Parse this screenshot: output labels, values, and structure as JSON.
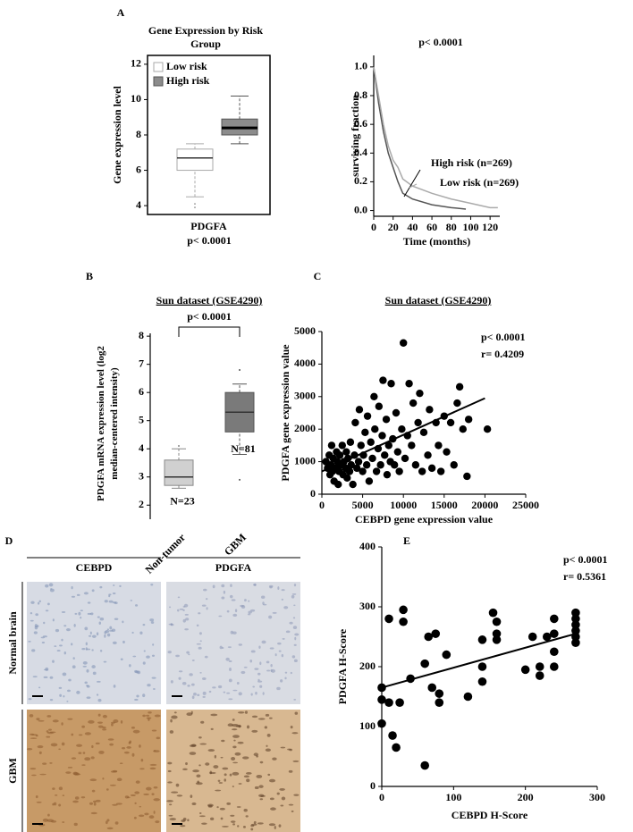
{
  "panels": [
    "A",
    "B",
    "C",
    "D",
    "E"
  ],
  "chart_data": [
    {
      "type": "box",
      "title": "Gene Expression by Risk Group",
      "y_label": "Gene expression level",
      "x_label": "PDGFA",
      "note": "p< 0.0001",
      "ylim": [
        3.5,
        12.5
      ],
      "yticks": [
        4,
        6,
        8,
        10,
        12
      ],
      "boxes": [
        {
          "name": "Low risk",
          "color": "#ffffff",
          "edge": "#aaaaaa",
          "whisker_low": 4.5,
          "q1": 6.0,
          "median": 6.7,
          "q3": 7.2,
          "whisker_high": 7.5,
          "outliers": [
            4.1,
            3.9
          ]
        },
        {
          "name": "High risk",
          "color": "#8c8c8c",
          "edge": "#555555",
          "whisker_low": 7.5,
          "q1": 8.0,
          "median": 8.4,
          "q3": 8.9,
          "whisker_high": 10.2,
          "outliers": []
        }
      ]
    },
    {
      "type": "line",
      "title": "p< 0.0001",
      "y_label": "surviving fraction",
      "x_label": "Time (months)",
      "xlim": [
        0,
        130
      ],
      "xticks": [
        0,
        20,
        40,
        60,
        80,
        100,
        120
      ],
      "ylim": [
        -0.04,
        1.08
      ],
      "yticks": [
        {
          "value": 0,
          "label": "0.0"
        },
        0.2,
        0.4,
        0.6,
        0.8,
        {
          "value": 1,
          "label": "1.0"
        }
      ],
      "annotations": [
        "High risk (n=269)",
        "Low risk (n=269)"
      ],
      "series": [
        {
          "name": "High risk",
          "color": "#555555",
          "x": [
            0,
            5,
            10,
            15,
            20,
            25,
            30,
            40,
            60,
            80,
            95
          ],
          "values": [
            1,
            0.75,
            0.55,
            0.4,
            0.3,
            0.2,
            0.12,
            0.08,
            0.04,
            0.02,
            0.01
          ]
        },
        {
          "name": "Low risk",
          "color": "#aaaaaa",
          "x": [
            0,
            5,
            10,
            15,
            20,
            25,
            30,
            40,
            60,
            80,
            100,
            120,
            128
          ],
          "values": [
            1,
            0.8,
            0.6,
            0.45,
            0.35,
            0.3,
            0.22,
            0.17,
            0.12,
            0.08,
            0.05,
            0.02,
            0.02
          ]
        }
      ]
    },
    {
      "type": "box",
      "panel": "B",
      "title": "Sun dataset  (GSE4290)",
      "note": "p< 0.0001",
      "y_label": "PDGFA mRNA expression level (log2 median-centered intensity)",
      "ylim": [
        1.5,
        8.1
      ],
      "yticks": [
        2,
        3,
        4,
        5,
        6,
        7,
        8
      ],
      "categories": [
        "Non-tumor",
        "GBM"
      ],
      "boxes": [
        {
          "color": "#d0d0d0",
          "edge": "#888888",
          "whisker_low": 2.6,
          "q1": 2.7,
          "median": 3.0,
          "q3": 3.6,
          "whisker_high": 4.0,
          "outliers": [
            4.1
          ],
          "n_label": "N=23"
        },
        {
          "color": "#7a7a7a",
          "edge": "#555555",
          "whisker_low": 3.8,
          "q1": 4.6,
          "median": 5.3,
          "q3": 6.0,
          "whisker_high": 6.3,
          "outliers": [
            6.8,
            2.9
          ],
          "n_label": "N=81"
        }
      ]
    },
    {
      "type": "scatter",
      "panel": "C",
      "title": "Sun dataset  (GSE4290)",
      "x_label": "CEBPD gene expression value",
      "y_label": "PDGFA gene expression value",
      "annotations": [
        "p< 0.0001",
        "r= 0.4209"
      ],
      "xlim": [
        0,
        25000
      ],
      "xticks": [
        0,
        5000,
        10000,
        15000,
        20000,
        25000
      ],
      "ylim": [
        0,
        5000
      ],
      "yticks": [
        0,
        1000,
        2000,
        3000,
        4000,
        5000
      ],
      "trendline": {
        "x": [
          0,
          20000
        ],
        "y": [
          700,
          2950
        ]
      },
      "x": [
        500,
        700,
        900,
        1000,
        1100,
        1200,
        1300,
        1400,
        1500,
        1600,
        1800,
        1900,
        2000,
        2100,
        2200,
        2300,
        2500,
        2600,
        2700,
        2900,
        3000,
        3100,
        3200,
        3400,
        3500,
        3600,
        3800,
        4000,
        4100,
        4300,
        4500,
        4600,
        4800,
        5000,
        5100,
        5300,
        5500,
        5600,
        5800,
        6000,
        6200,
        6400,
        6500,
        6700,
        6900,
        7000,
        7200,
        7400,
        7500,
        7700,
        7900,
        8000,
        8200,
        8400,
        8500,
        8700,
        8900,
        9100,
        9300,
        9500,
        9800,
        10000,
        10200,
        10500,
        10700,
        11000,
        11200,
        11500,
        11800,
        12000,
        12300,
        12500,
        13000,
        13200,
        13500,
        14000,
        14300,
        14600,
        15000,
        15300,
        15800,
        16200,
        16600,
        16900,
        17300,
        17800,
        18000,
        20300
      ],
      "y": [
        1000,
        800,
        1200,
        600,
        900,
        1500,
        700,
        1100,
        400,
        800,
        1300,
        1000,
        300,
        700,
        1200,
        900,
        1500,
        600,
        1000,
        800,
        1300,
        500,
        1100,
        700,
        1600,
        900,
        300,
        1200,
        2200,
        800,
        1000,
        2600,
        1500,
        700,
        1200,
        1900,
        900,
        2400,
        400,
        1600,
        1100,
        3000,
        2000,
        700,
        1400,
        2700,
        900,
        1800,
        3500,
        1200,
        2300,
        600,
        1500,
        1000,
        3400,
        1700,
        900,
        2500,
        1300,
        700,
        2000,
        4650,
        1100,
        1800,
        3400,
        1500,
        2800,
        900,
        2200,
        3100,
        700,
        1900,
        1200,
        2600,
        800,
        2200,
        1500,
        700,
        2400,
        1300,
        2200,
        900,
        2800,
        3300,
        2000,
        550,
        2300,
        2000
      ]
    },
    {
      "type": "scatter",
      "panel": "E",
      "x_label": "CEBPD H-Score",
      "y_label": "PDGFA H-Score",
      "annotations": [
        "p< 0.0001",
        "r= 0.5361"
      ],
      "xlim": [
        0,
        300
      ],
      "xticks": [
        0,
        100,
        200,
        300
      ],
      "ylim": [
        0,
        400
      ],
      "yticks": [
        0,
        100,
        200,
        300,
        400
      ],
      "trendline": {
        "x": [
          0,
          270
        ],
        "y": [
          165,
          255
        ]
      },
      "x": [
        0,
        0,
        0,
        10,
        10,
        15,
        20,
        25,
        30,
        30,
        40,
        60,
        60,
        65,
        70,
        75,
        80,
        80,
        90,
        120,
        140,
        140,
        140,
        155,
        160,
        160,
        160,
        200,
        210,
        220,
        220,
        230,
        240,
        240,
        240,
        240,
        270,
        270,
        270,
        270,
        270,
        270
      ],
      "y": [
        165,
        105,
        145,
        280,
        140,
        85,
        65,
        140,
        295,
        275,
        180,
        35,
        205,
        250,
        165,
        255,
        140,
        155,
        220,
        150,
        175,
        245,
        200,
        290,
        275,
        255,
        245,
        195,
        250,
        185,
        200,
        250,
        255,
        280,
        200,
        225,
        290,
        280,
        270,
        260,
        250,
        240
      ]
    }
  ],
  "figure_d": {
    "panel": "D",
    "columns": [
      "CEBPD",
      "PDGFA"
    ],
    "rows": [
      "Normal brain",
      "GBM"
    ]
  }
}
